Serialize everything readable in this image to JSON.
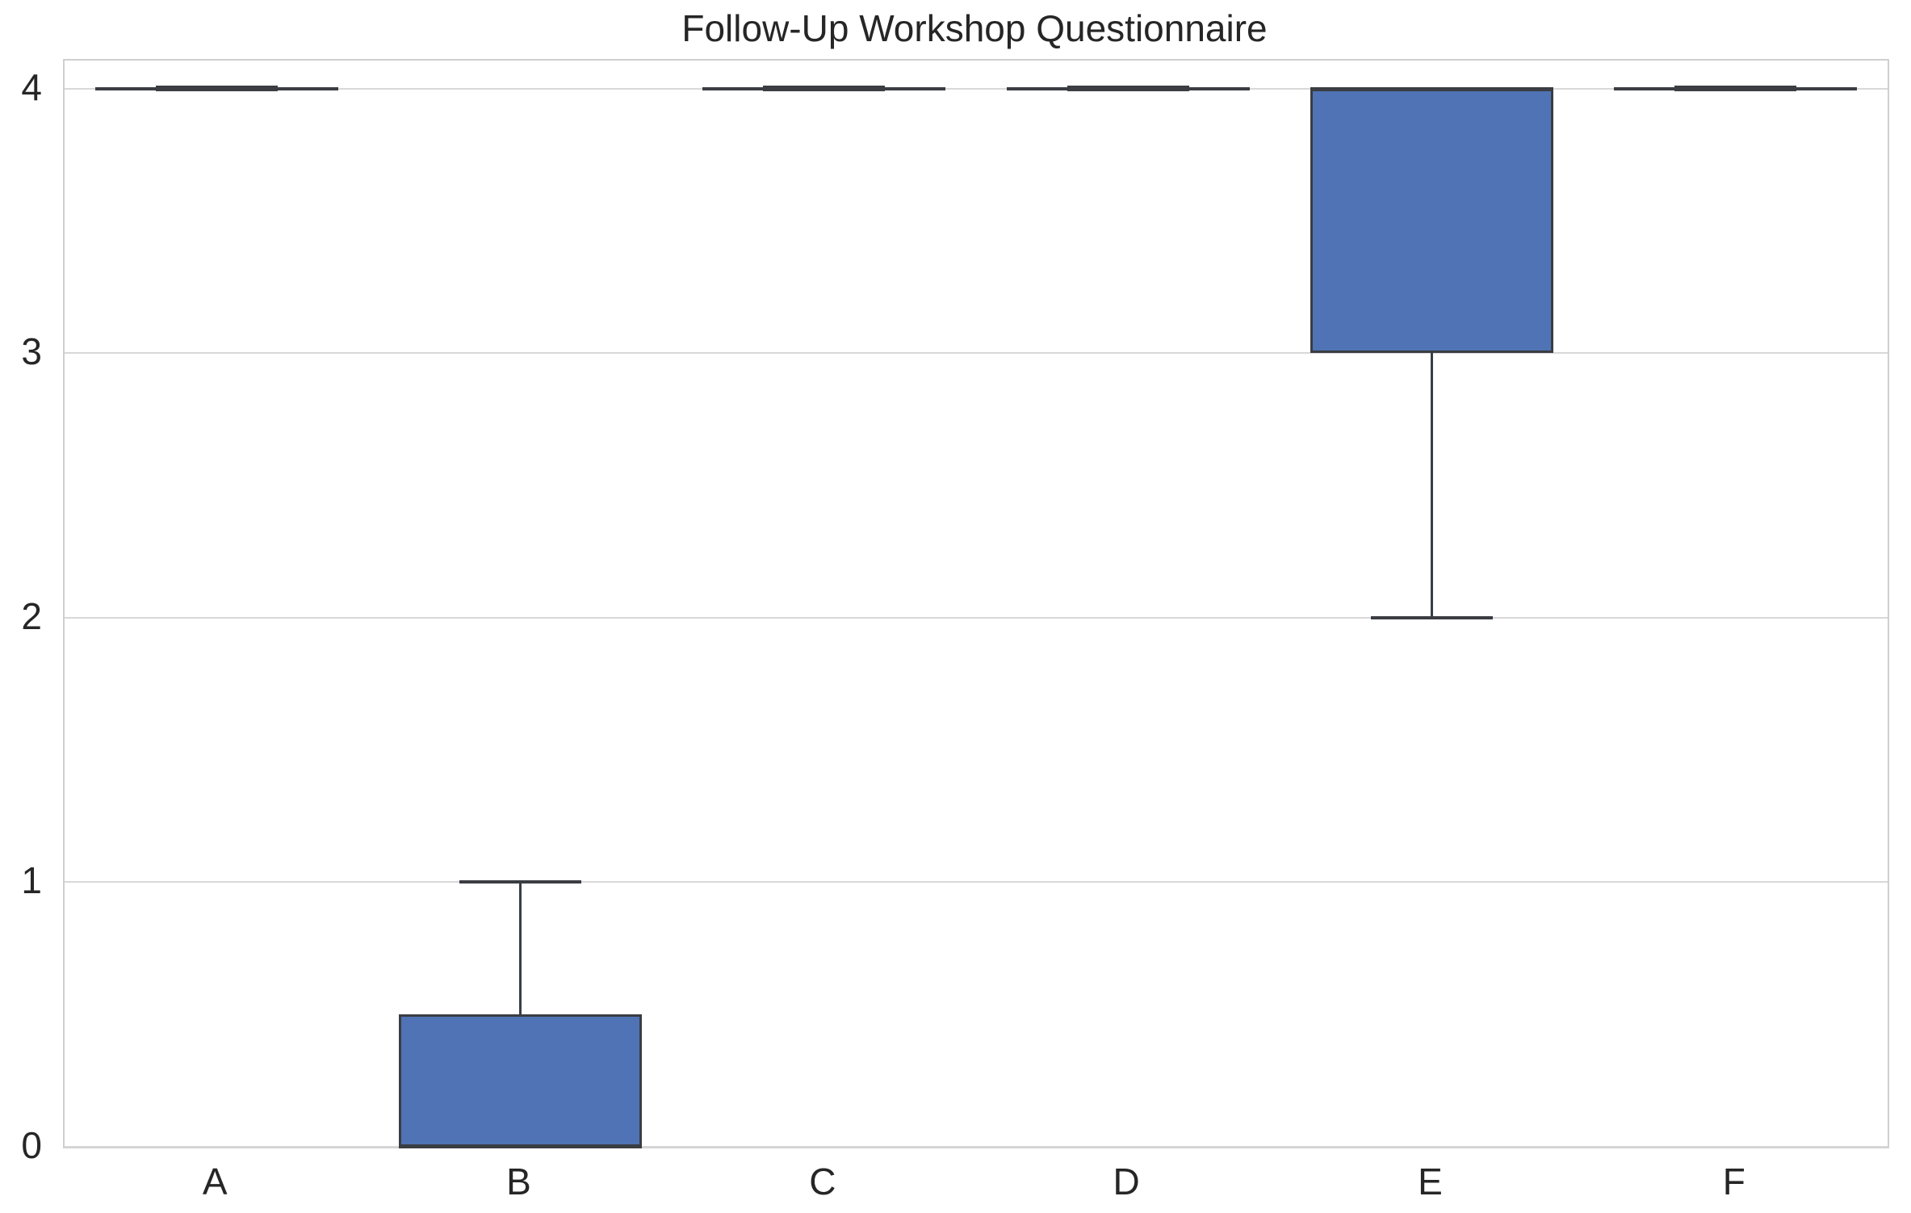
{
  "chart_data": {
    "type": "box",
    "title": "Follow-Up Workshop Questionnaire",
    "categories": [
      "A",
      "B",
      "C",
      "D",
      "E",
      "F"
    ],
    "stats": [
      {
        "category": "A",
        "whislo": 4,
        "q1": 4,
        "med": 4,
        "q3": 4,
        "whishi": 4
      },
      {
        "category": "B",
        "whislo": 0,
        "q1": 0,
        "med": 0,
        "q3": 0.5,
        "whishi": 1
      },
      {
        "category": "C",
        "whislo": 4,
        "q1": 4,
        "med": 4,
        "q3": 4,
        "whishi": 4
      },
      {
        "category": "D",
        "whislo": 4,
        "q1": 4,
        "med": 4,
        "q3": 4,
        "whishi": 4
      },
      {
        "category": "E",
        "whislo": 2,
        "q1": 3,
        "med": 4,
        "q3": 4,
        "whishi": 4
      },
      {
        "category": "F",
        "whislo": 4,
        "q1": 4,
        "med": 4,
        "q3": 4,
        "whishi": 4
      }
    ],
    "xlabel": "",
    "ylabel": "",
    "yticks": [
      0,
      1,
      2,
      3,
      4
    ],
    "ylim": [
      0,
      4.106
    ],
    "grid": true,
    "legend_position": "none",
    "colors": {
      "box_fill": "#4f73b4",
      "box_edge": "#3a3d42",
      "grid": "#d8d8d8",
      "spine": "#cfcfcf",
      "text": "#262626",
      "background": "#ffffff"
    }
  }
}
